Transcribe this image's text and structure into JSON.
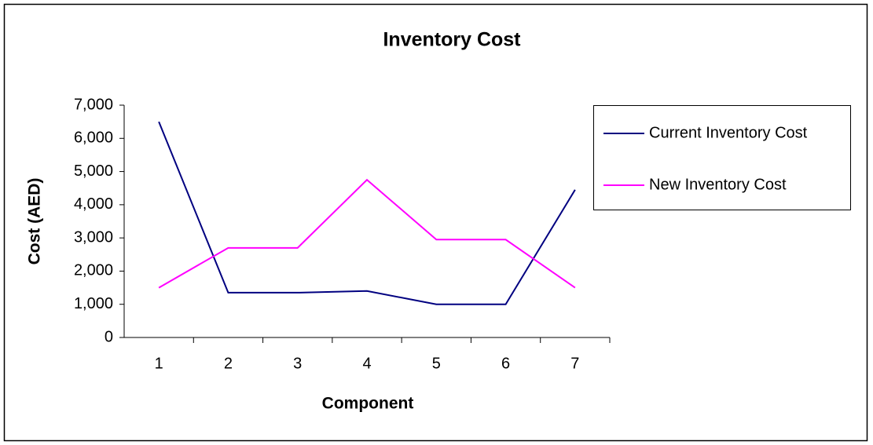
{
  "chart_data": {
    "type": "line",
    "title": "Inventory Cost",
    "x_label": "Component",
    "y_label": "Cost (AED)",
    "categories": [
      "1",
      "2",
      "3",
      "4",
      "5",
      "6",
      "7"
    ],
    "series": [
      {
        "name": "Current Inventory Cost",
        "color": "#000080",
        "values": [
          6500,
          1350,
          1350,
          1400,
          1000,
          1000,
          4450
        ]
      },
      {
        "name": "New Inventory Cost",
        "color": "#ff00ff",
        "values": [
          1500,
          2700,
          2700,
          4750,
          2950,
          2950,
          1500
        ]
      }
    ],
    "ylim": [
      0,
      7000
    ],
    "yticks": [
      0,
      {
        "value": 1000,
        "label": "1,000"
      },
      {
        "value": 2000,
        "label": "2,000"
      },
      {
        "value": 3000,
        "label": "3,000"
      },
      {
        "value": 4000,
        "label": "4,000"
      },
      {
        "value": 5000,
        "label": "5,000"
      },
      {
        "value": 6000,
        "label": "6,000"
      },
      {
        "value": 7000,
        "label": "7,000"
      }
    ],
    "legend": "right"
  }
}
